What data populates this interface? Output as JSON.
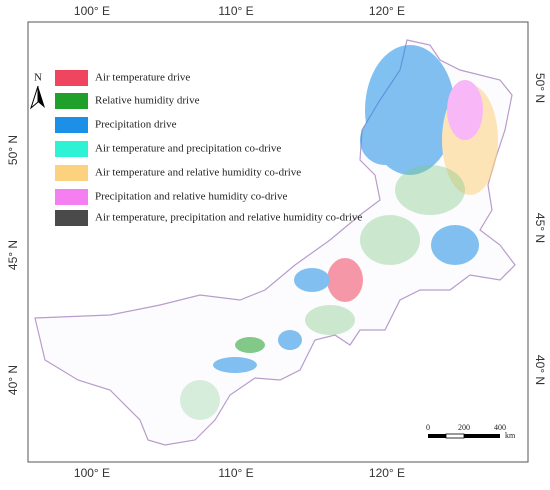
{
  "map": {
    "top_labels": [
      "100° E",
      "110° E",
      "120° E"
    ],
    "bottom_labels": [
      "100° E",
      "110° E",
      "120° E"
    ],
    "left_labels": [
      "50° N",
      "45° N",
      "40° N"
    ],
    "right_labels": [
      "50° N",
      "45° N",
      "40° N"
    ],
    "north_label": "N",
    "legend": [
      {
        "label": "Air temperature drive",
        "color": "#f0455f"
      },
      {
        "label": "Relative humidity drive",
        "color": "#1fa02a"
      },
      {
        "label": "Precipitation drive",
        "color": "#1c8fe6"
      },
      {
        "label": "Air temperature and precipitation co-drive",
        "color": "#2ef2d4"
      },
      {
        "label": "Air temperature and relative humidity co-drive",
        "color": "#fdd27e"
      },
      {
        "label": "Precipitation and relative humidity co-drive",
        "color": "#f57ff0"
      },
      {
        "label": "Air temperature, precipitation and relative humidity co-drive",
        "color": "#4a4a4a"
      }
    ],
    "scale_labels": [
      "0",
      "200",
      "400"
    ],
    "scale_unit": "km"
  }
}
